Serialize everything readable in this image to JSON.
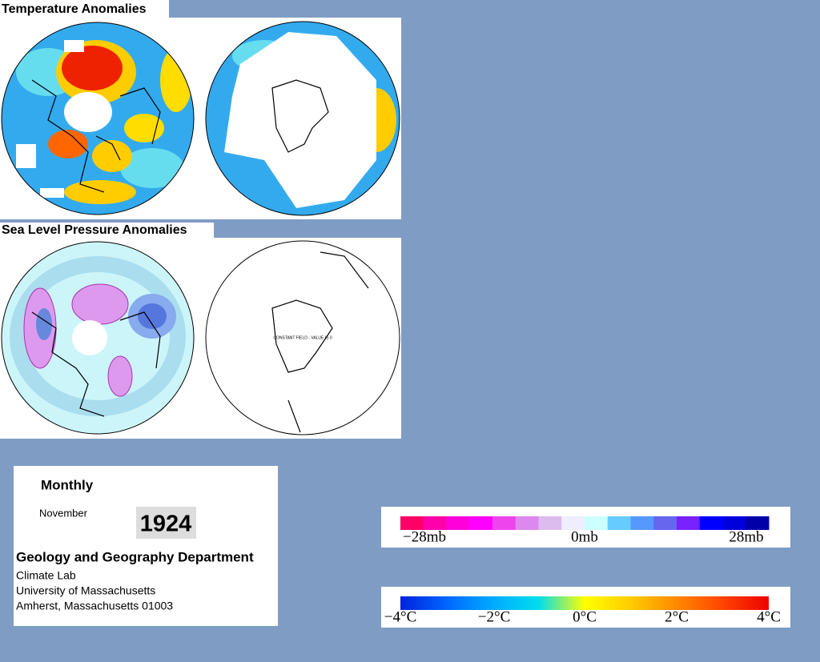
{
  "temperature_panel": {
    "title": "Temperature Anomalies"
  },
  "pressure_panel": {
    "title": "Sea Level Pressure Anomalies",
    "annotation": "CONSTANT FIELD - VALUE IS 0"
  },
  "info": {
    "frequency": "Monthly",
    "month": "November",
    "year": "1924",
    "department": "Geology and Geography Department",
    "lines": [
      "Climate Lab",
      "University of Massachusetts",
      "Amherst, Massachusetts 01003"
    ]
  },
  "pressure_scale": {
    "colors": [
      "#ff0066",
      "#ff00aa",
      "#ff00dd",
      "#ff00ff",
      "#ee44ee",
      "#dd88ee",
      "#ddbbee",
      "#eeeeff",
      "#ccffff",
      "#66ccff",
      "#5599ff",
      "#6666ee",
      "#7722ff",
      "#0000ff",
      "#0000dd",
      "#0000aa"
    ],
    "labels": [
      "−28mb",
      "0mb",
      "28mb"
    ]
  },
  "temperature_scale": {
    "colors": [
      "#0022dd",
      "#0066ff",
      "#00aaff",
      "#00ddee",
      "#ffff00",
      "#ffcc00",
      "#ff8800",
      "#ff4400",
      "#ee0000"
    ],
    "labels": [
      "−4°C",
      "−2°C",
      "0°C",
      "2°C",
      "4°C"
    ]
  }
}
